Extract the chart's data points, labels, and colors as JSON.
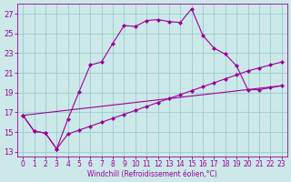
{
  "title": "",
  "xlabel": "Windchill (Refroidissement éolien,°C)",
  "background_color": "#cce8e8",
  "grid_color": "#99cccc",
  "line_color": "#990099",
  "xlim_min": -0.5,
  "xlim_max": 23.5,
  "ylim_min": 12.5,
  "ylim_max": 28.0,
  "xticks": [
    0,
    1,
    2,
    3,
    4,
    5,
    6,
    7,
    8,
    9,
    10,
    11,
    12,
    13,
    14,
    15,
    16,
    17,
    18,
    19,
    20,
    21,
    22,
    23
  ],
  "yticks": [
    13,
    15,
    17,
    19,
    21,
    23,
    25,
    27
  ],
  "series1_x": [
    0,
    1,
    2,
    3,
    4,
    5,
    6,
    7,
    8,
    9,
    10,
    11,
    12,
    13,
    14,
    15,
    16,
    17,
    18,
    19,
    20,
    21,
    22,
    23
  ],
  "series1_y": [
    16.7,
    15.1,
    14.9,
    13.3,
    16.3,
    19.1,
    21.8,
    22.1,
    24.0,
    25.8,
    25.7,
    26.3,
    26.4,
    26.2,
    26.1,
    27.5,
    24.8,
    23.5,
    22.9,
    21.7,
    19.3,
    19.3,
    19.5,
    19.7
  ],
  "series2_x": [
    0,
    1,
    2,
    3,
    4,
    5,
    6,
    7,
    8,
    9,
    10,
    11,
    12,
    13,
    14,
    15,
    16,
    17,
    18,
    19,
    20,
    21,
    22,
    23
  ],
  "series2_y": [
    16.7,
    15.1,
    14.9,
    13.3,
    14.8,
    15.2,
    15.6,
    16.0,
    16.4,
    16.8,
    17.2,
    17.6,
    18.0,
    18.4,
    18.8,
    19.2,
    19.6,
    20.0,
    20.4,
    20.8,
    21.2,
    21.5,
    21.8,
    22.1
  ],
  "series3_x": [
    0,
    23
  ],
  "series3_y": [
    16.7,
    19.7
  ],
  "tick_fontsize": 5.5,
  "xlabel_fontsize": 5.5,
  "marker": "D",
  "markersize": 2.0,
  "linewidth": 0.8
}
